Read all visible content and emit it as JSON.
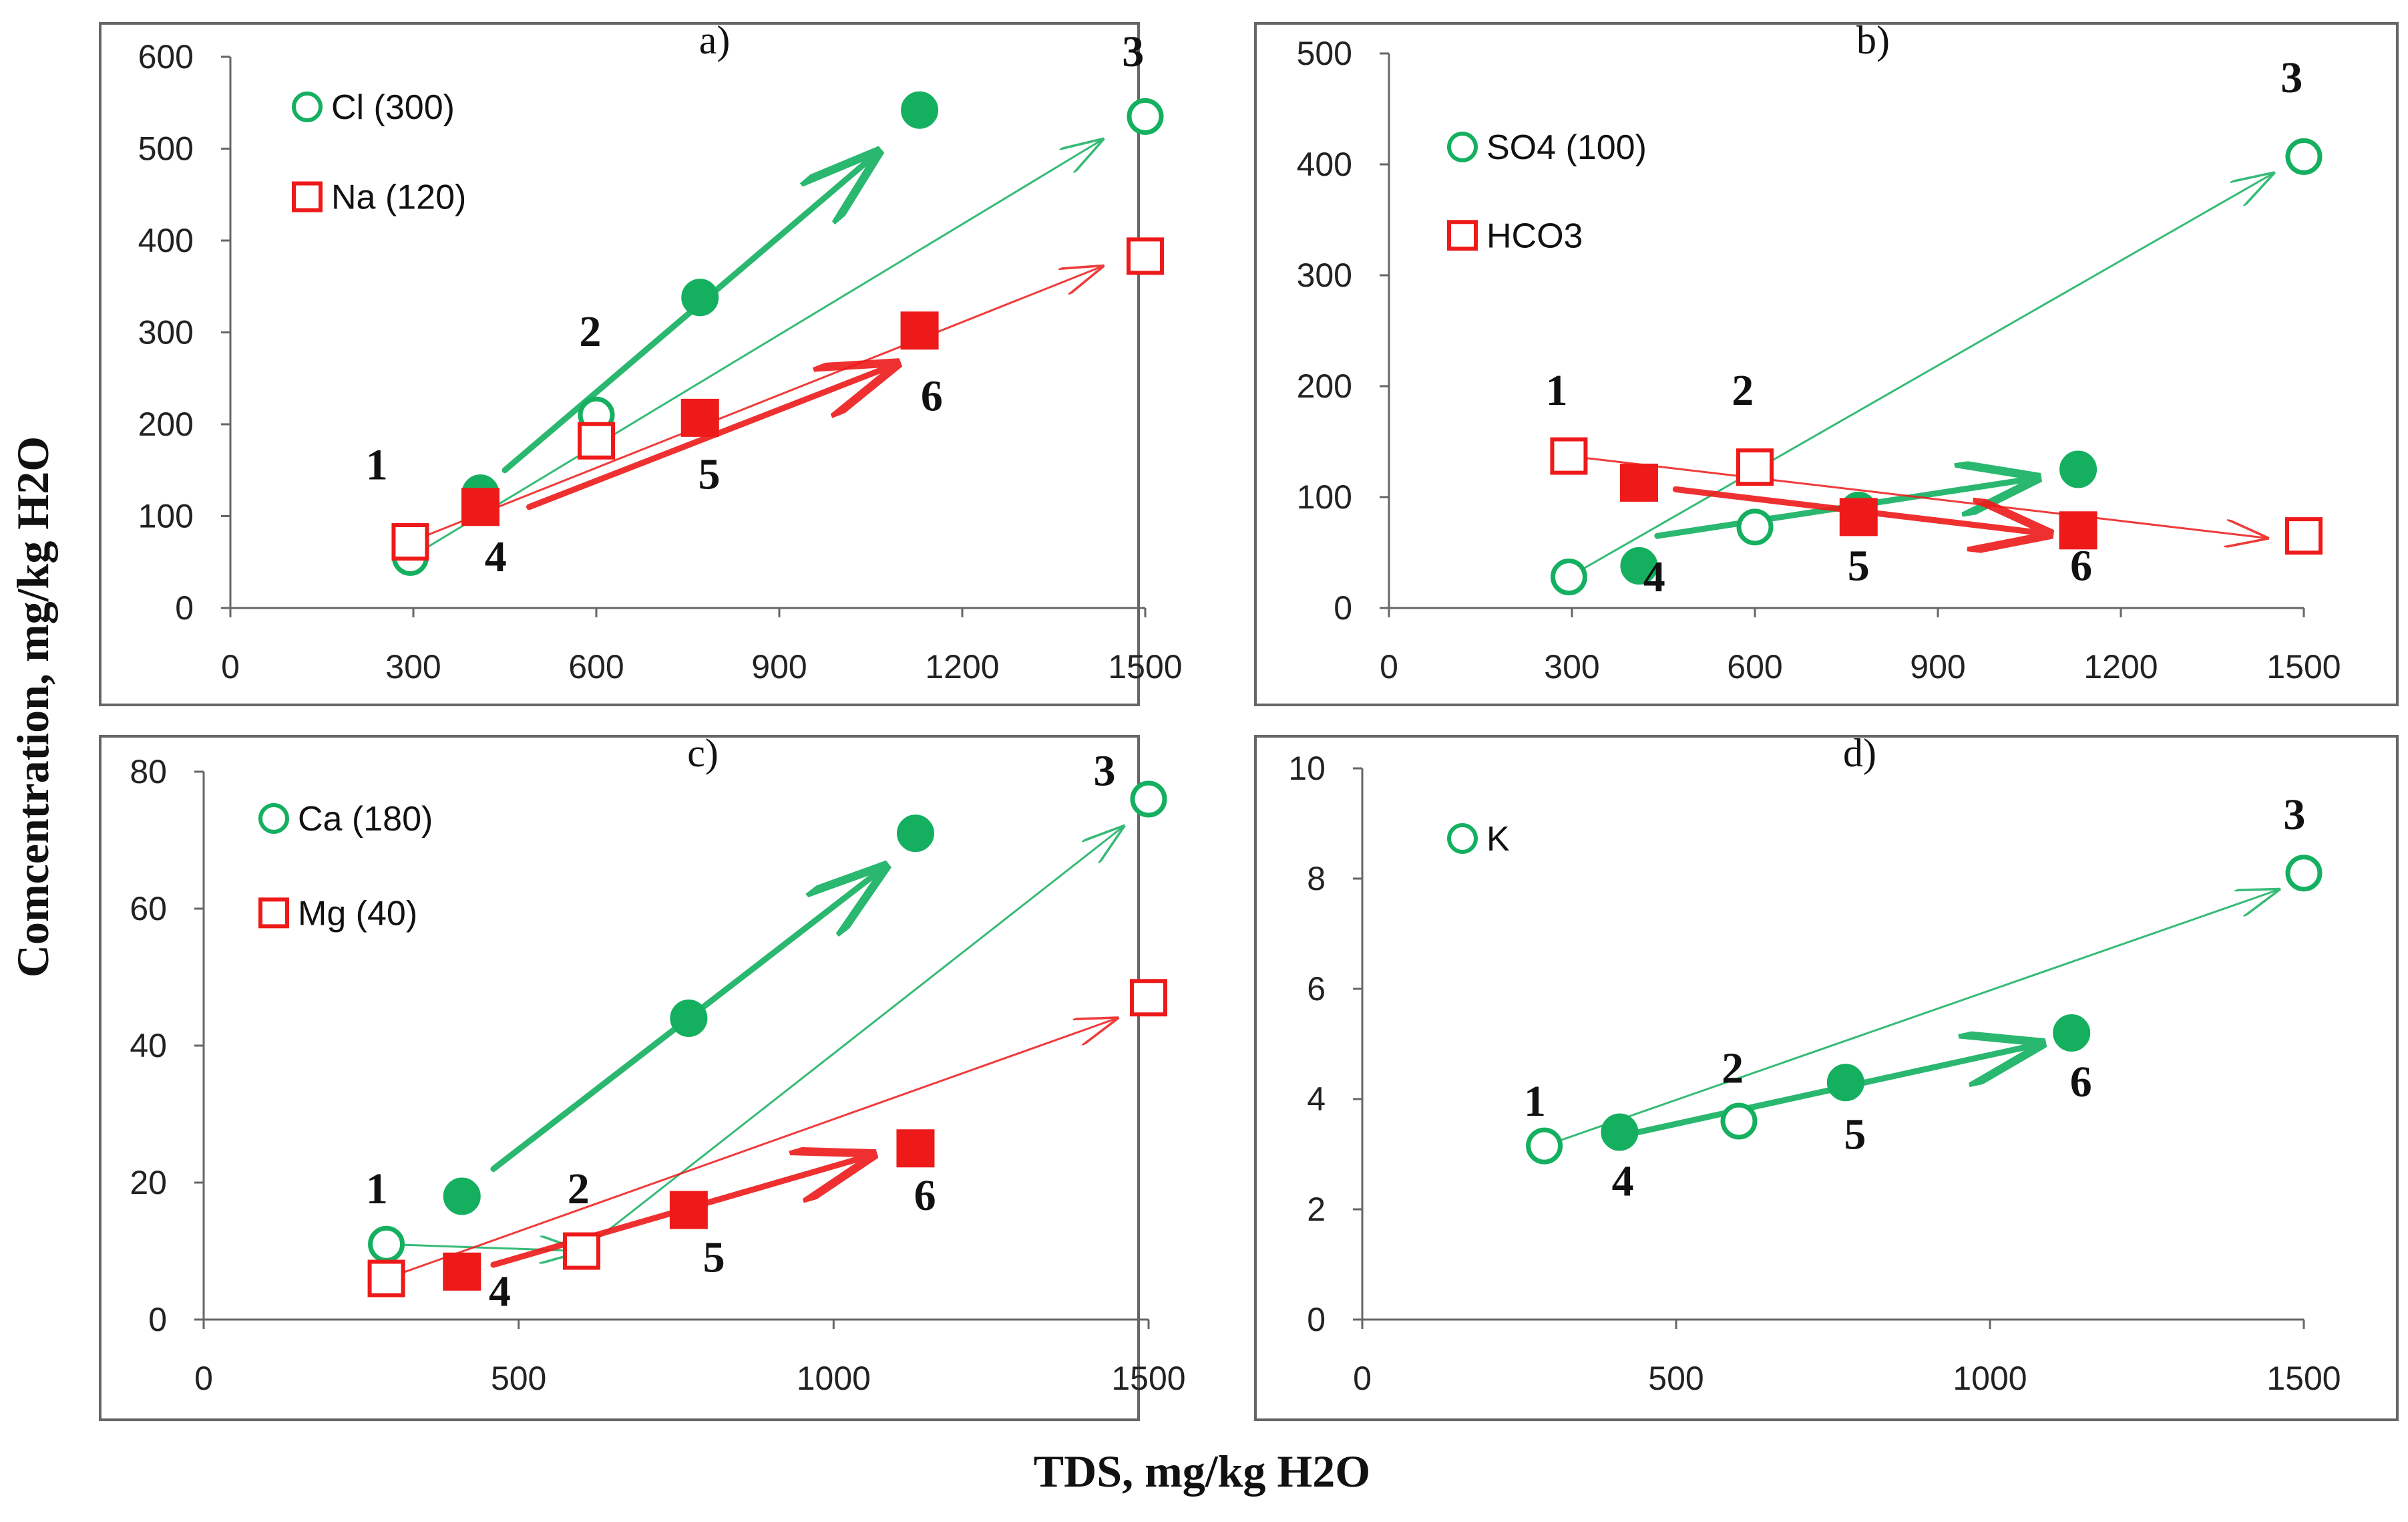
{
  "colors": {
    "green": "#14b060",
    "red": "#ee1a1a",
    "frame": "#666666",
    "axis": "#666666"
  },
  "figure": {
    "ylabel": "Comcentration, mg/kg H2O",
    "xlabel": "TDS, mg/kg H2O"
  },
  "chart_data": [
    {
      "type": "scatter",
      "panel_label": "a)",
      "xlim": [
        0,
        1500
      ],
      "ylim": [
        0,
        600
      ],
      "xticks": [
        "0",
        "300",
        "600",
        "900",
        "1200",
        "1500"
      ],
      "yticks": [
        "0",
        "100",
        "200",
        "300",
        "400",
        "500",
        "600"
      ],
      "series": [
        {
          "name": "Cl (300)",
          "color": "green",
          "marker": "circle",
          "points": [
            {
              "x": 295,
              "y": 55,
              "filled": false
            },
            {
              "x": 600,
              "y": 210,
              "filled": false
            },
            {
              "x": 1500,
              "y": 535,
              "filled": false
            },
            {
              "x": 410,
              "y": 125,
              "filled": true
            },
            {
              "x": 770,
              "y": 338,
              "filled": true
            },
            {
              "x": 1130,
              "y": 542,
              "filled": true
            }
          ],
          "arrows": [
            {
              "from": [
                295,
                55
              ],
              "to": [
                1430,
                510
              ],
              "bold": false
            },
            {
              "from": [
                450,
                150
              ],
              "to": [
                1060,
                495
              ],
              "bold": true
            }
          ]
        },
        {
          "name": "Na (120)",
          "color": "red",
          "marker": "square",
          "points": [
            {
              "x": 295,
              "y": 72,
              "filled": false
            },
            {
              "x": 600,
              "y": 182,
              "filled": false
            },
            {
              "x": 1500,
              "y": 383,
              "filled": false
            },
            {
              "x": 410,
              "y": 110,
              "filled": true
            },
            {
              "x": 770,
              "y": 207,
              "filled": true
            },
            {
              "x": 1130,
              "y": 302,
              "filled": true
            }
          ],
          "arrows": [
            {
              "from": [
                295,
                72
              ],
              "to": [
                1430,
                372
              ],
              "bold": false
            },
            {
              "from": [
                490,
                110
              ],
              "to": [
                1090,
                265
              ],
              "bold": true
            }
          ]
        }
      ],
      "labels": [
        {
          "text": "1",
          "x": 240,
          "y": 140
        },
        {
          "text": "2",
          "x": 590,
          "y": 285
        },
        {
          "text": "3",
          "x": 1480,
          "y": 590
        },
        {
          "text": "4",
          "x": 435,
          "y": 40
        },
        {
          "text": "5",
          "x": 785,
          "y": 130
        },
        {
          "text": "6",
          "x": 1150,
          "y": 215
        }
      ]
    },
    {
      "type": "scatter",
      "panel_label": "b)",
      "xlim": [
        0,
        1500
      ],
      "ylim": [
        0,
        500
      ],
      "xticks": [
        "0",
        "300",
        "600",
        "900",
        "1200",
        "1500"
      ],
      "yticks": [
        "0",
        "100",
        "200",
        "300",
        "400",
        "500"
      ],
      "series": [
        {
          "name": "SO4 (100)",
          "color": "green",
          "marker": "circle",
          "points": [
            {
              "x": 295,
              "y": 28,
              "filled": false
            },
            {
              "x": 600,
              "y": 73,
              "filled": false
            },
            {
              "x": 1500,
              "y": 407,
              "filled": false
            },
            {
              "x": 410,
              "y": 38,
              "filled": true
            },
            {
              "x": 770,
              "y": 88,
              "filled": true
            },
            {
              "x": 1130,
              "y": 125,
              "filled": true
            }
          ],
          "arrows": [
            {
              "from": [
                295,
                28
              ],
              "to": [
                1450,
                392
              ],
              "bold": false
            },
            {
              "from": [
                440,
                65
              ],
              "to": [
                1060,
                117
              ],
              "bold": true
            }
          ]
        },
        {
          "name": "HCO3",
          "color": "red",
          "marker": "square",
          "points": [
            {
              "x": 295,
              "y": 137,
              "filled": false
            },
            {
              "x": 600,
              "y": 127,
              "filled": false
            },
            {
              "x": 1500,
              "y": 65,
              "filled": false
            },
            {
              "x": 410,
              "y": 113,
              "filled": true
            },
            {
              "x": 770,
              "y": 82,
              "filled": true
            },
            {
              "x": 1130,
              "y": 70,
              "filled": true
            }
          ],
          "arrows": [
            {
              "from": [
                295,
                137
              ],
              "to": [
                1440,
                63
              ],
              "bold": false
            },
            {
              "from": [
                470,
                107
              ],
              "to": [
                1080,
                67
              ],
              "bold": true
            }
          ]
        }
      ],
      "labels": [
        {
          "text": "1",
          "x": 275,
          "y": 183
        },
        {
          "text": "2",
          "x": 580,
          "y": 183
        },
        {
          "text": "3",
          "x": 1480,
          "y": 465
        },
        {
          "text": "4",
          "x": 435,
          "y": 15
        },
        {
          "text": "5",
          "x": 770,
          "y": 25
        },
        {
          "text": "6",
          "x": 1135,
          "y": 25
        }
      ]
    },
    {
      "type": "scatter",
      "panel_label": "c)",
      "xlim": [
        0,
        1500
      ],
      "ylim": [
        0,
        80
      ],
      "xticks": [
        "0",
        "500",
        "1000",
        "1500"
      ],
      "yticks": [
        "0",
        "20",
        "40",
        "60",
        "80"
      ],
      "series": [
        {
          "name": "Ca (180)",
          "color": "green",
          "marker": "circle",
          "points": [
            {
              "x": 290,
              "y": 11,
              "filled": false
            },
            {
              "x": 600,
              "y": 10,
              "filled": false
            },
            {
              "x": 1500,
              "y": 76,
              "filled": false
            },
            {
              "x": 410,
              "y": 18,
              "filled": true
            },
            {
              "x": 770,
              "y": 44,
              "filled": true
            },
            {
              "x": 1130,
              "y": 71,
              "filled": true
            }
          ],
          "arrows": [
            {
              "from": [
                290,
                11
              ],
              "to": [
                600,
                10
              ],
              "bold": false
            },
            {
              "from": [
                600,
                10
              ],
              "to": [
                1460,
                72
              ],
              "bold": false
            },
            {
              "from": [
                460,
                22
              ],
              "to": [
                1080,
                66
              ],
              "bold": true
            }
          ]
        },
        {
          "name": "Mg (40)",
          "color": "red",
          "marker": "square",
          "points": [
            {
              "x": 290,
              "y": 6,
              "filled": false
            },
            {
              "x": 600,
              "y": 10,
              "filled": false
            },
            {
              "x": 1500,
              "y": 47,
              "filled": false
            },
            {
              "x": 410,
              "y": 7,
              "filled": true
            },
            {
              "x": 770,
              "y": 16,
              "filled": true
            },
            {
              "x": 1130,
              "y": 25,
              "filled": true
            }
          ],
          "arrows": [
            {
              "from": [
                290,
                6
              ],
              "to": [
                1450,
                44
              ],
              "bold": false
            },
            {
              "from": [
                460,
                8
              ],
              "to": [
                1060,
                24
              ],
              "bold": true
            }
          ]
        }
      ],
      "labels": [
        {
          "text": "1",
          "x": 275,
          "y": 17
        },
        {
          "text": "2",
          "x": 595,
          "y": 17
        },
        {
          "text": "3",
          "x": 1430,
          "y": 78
        },
        {
          "text": "4",
          "x": 470,
          "y": 2
        },
        {
          "text": "5",
          "x": 810,
          "y": 7
        },
        {
          "text": "6",
          "x": 1145,
          "y": 16
        }
      ]
    },
    {
      "type": "scatter",
      "panel_label": "d)",
      "xlim": [
        0,
        1500
      ],
      "ylim": [
        0,
        10
      ],
      "xticks": [
        "0",
        "500",
        "1000",
        "1500"
      ],
      "yticks": [
        "0",
        "2",
        "4",
        "6",
        "8",
        "10"
      ],
      "series": [
        {
          "name": "K",
          "color": "green",
          "marker": "circle",
          "points": [
            {
              "x": 290,
              "y": 3.15,
              "filled": false
            },
            {
              "x": 600,
              "y": 3.6,
              "filled": false
            },
            {
              "x": 1500,
              "y": 8.1,
              "filled": false
            },
            {
              "x": 410,
              "y": 3.4,
              "filled": true
            },
            {
              "x": 770,
              "y": 4.3,
              "filled": true
            },
            {
              "x": 1130,
              "y": 5.2,
              "filled": true
            }
          ],
          "arrows": [
            {
              "from": [
                290,
                3.15
              ],
              "to": [
                1460,
                7.8
              ],
              "bold": false
            },
            {
              "from": [
                440,
                3.4
              ],
              "to": [
                1080,
                5.0
              ],
              "bold": true
            }
          ]
        }
      ],
      "labels": [
        {
          "text": "1",
          "x": 275,
          "y": 3.7
        },
        {
          "text": "2",
          "x": 590,
          "y": 4.3
        },
        {
          "text": "3",
          "x": 1485,
          "y": 8.9
        },
        {
          "text": "4",
          "x": 415,
          "y": 2.25
        },
        {
          "text": "5",
          "x": 785,
          "y": 3.1
        },
        {
          "text": "6",
          "x": 1145,
          "y": 4.05
        }
      ]
    }
  ]
}
